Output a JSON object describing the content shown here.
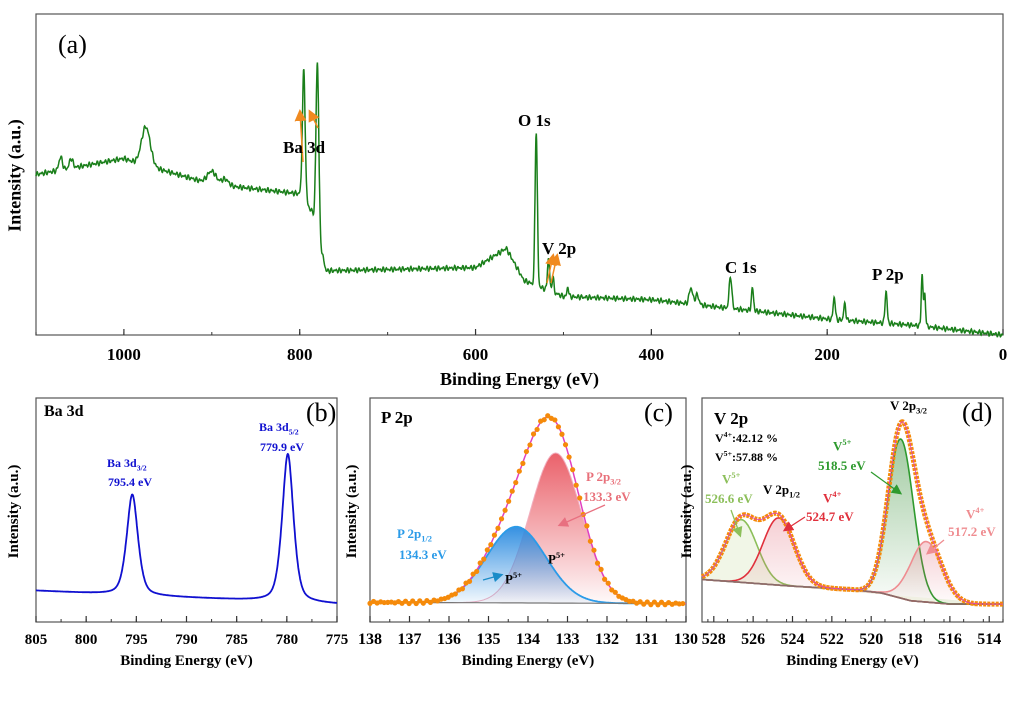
{
  "colors": {
    "survey": "#1a7f1a",
    "ba": "#1010d0",
    "envelope_dots": "#f58a0a",
    "envelope_line": "#e040c0",
    "p_half": "#2b9be8",
    "p_three_half": "#e8505a",
    "v5_526": "#8cbf5a",
    "v4_524": "#e0303c",
    "v5_518": "#2e9a2e",
    "v4_517": "#ef8c90",
    "background_line": "#8a6a6a",
    "arrow": "#f08a20"
  },
  "chart_data": [
    {
      "panel": "(a)",
      "type": "line",
      "xlabel": "Binding Energy (eV)",
      "ylabel": "Intensity (a.u.)",
      "xlim": [
        1100,
        0
      ],
      "ylim": [
        0,
        100
      ],
      "xticks": [
        1000,
        800,
        600,
        400,
        200,
        0
      ],
      "grid": false,
      "baseline": [
        [
          1100,
          50
        ],
        [
          1000,
          55
        ],
        [
          990,
          54
        ],
        [
          900,
          47
        ],
        [
          800,
          44
        ],
        [
          785,
          38
        ],
        [
          770,
          20
        ],
        [
          600,
          21
        ],
        [
          565,
          27
        ],
        [
          545,
          17
        ],
        [
          500,
          12
        ],
        [
          400,
          11
        ],
        [
          300,
          8
        ],
        [
          200,
          5
        ],
        [
          100,
          3
        ],
        [
          0,
          0
        ]
      ],
      "peaks": [
        [
          1072,
          4,
          2
        ],
        [
          1060,
          3,
          2
        ],
        [
          975,
          12,
          5
        ],
        [
          900,
          4,
          5
        ],
        [
          885,
          2,
          4
        ],
        [
          795.4,
          40,
          1.6
        ],
        [
          779.9,
          53,
          1.6
        ],
        [
          531,
          48,
          1.3
        ],
        [
          517,
          10,
          1.2
        ],
        [
          512,
          5,
          1
        ],
        [
          495,
          3,
          1
        ],
        [
          355,
          5,
          2
        ],
        [
          348,
          3,
          2
        ],
        [
          310,
          10,
          1.5
        ],
        [
          285,
          7,
          1.2
        ],
        [
          192,
          7,
          1.2
        ],
        [
          180,
          5,
          1.2
        ],
        [
          133,
          10,
          1.2
        ],
        [
          92,
          16,
          1
        ],
        [
          89,
          10,
          1
        ]
      ],
      "annotations": [
        "Ba 3d",
        "O 1s",
        "V 2p",
        "C 1s",
        "P 2p"
      ]
    },
    {
      "panel": "(b)",
      "type": "line",
      "title": "Ba 3d",
      "xlabel": "Binding Energy (eV)",
      "ylabel": "Intensity (a.u.)",
      "xlim": [
        805,
        775
      ],
      "ylim": [
        0,
        100
      ],
      "xticks": [
        805,
        800,
        795,
        790,
        785,
        780,
        775
      ],
      "baseline": [
        [
          805,
          14
        ],
        [
          796,
          12
        ],
        [
          780,
          9
        ],
        [
          775,
          8
        ]
      ],
      "peaks": [
        {
          "label": "Ba 3d",
          "sub": "3/2",
          "center": 795.4,
          "height": 45,
          "width": 0.6
        },
        {
          "label": "Ba 3d",
          "sub": "5/2",
          "center": 779.9,
          "height": 66,
          "width": 0.6
        }
      ]
    },
    {
      "panel": "(c)",
      "type": "line",
      "title": "P 2p",
      "xlabel": "Binding Energy (eV)",
      "ylabel": "Intensity (a.u.)",
      "xlim": [
        138,
        130
      ],
      "ylim": [
        0,
        100
      ],
      "xticks": [
        138,
        137,
        136,
        135,
        134,
        133,
        132,
        131,
        130
      ],
      "baseline": [
        [
          138,
          8.8
        ],
        [
          130,
          8.2
        ]
      ],
      "components": [
        {
          "label": "P 2p",
          "sub": "1/2",
          "energy": "134.3 eV",
          "state": "P",
          "state_sup": "5+",
          "center": 134.3,
          "height": 34,
          "sigma": 0.75
        },
        {
          "label": "P 2p",
          "sub": "3/2",
          "energy": "133.3 eV",
          "state": "P",
          "state_sup": "5+",
          "center": 133.3,
          "height": 67,
          "sigma": 0.65
        }
      ]
    },
    {
      "panel": "(d)",
      "type": "line",
      "title": "V 2p",
      "xlabel": "Binding Energy (eV)",
      "ylabel": "Intensity (a.u.)",
      "xlim": [
        528.6,
        513.3
      ],
      "ylim": [
        0,
        100
      ],
      "xticks": [
        528,
        526,
        524,
        522,
        520,
        518,
        516,
        514
      ],
      "baseline": [
        [
          528.6,
          19
        ],
        [
          524,
          16
        ],
        [
          521,
          14.5
        ],
        [
          519.5,
          13
        ],
        [
          518,
          9.5
        ],
        [
          516,
          8
        ],
        [
          513.3,
          8
        ]
      ],
      "ratios": [
        {
          "ion": "V",
          "sup": "4+",
          "value": ":42.12 %"
        },
        {
          "ion": "V",
          "sup": "5+",
          "value": ":57.88 %"
        }
      ],
      "groups": [
        {
          "label": "V 2p",
          "sub": "1/2"
        },
        {
          "label": "V 2p",
          "sub": "3/2"
        }
      ],
      "components": [
        {
          "state": "V",
          "state_sup": "5+",
          "energy": "526.6 eV",
          "center": 526.6,
          "height": 28,
          "sigma": 0.8
        },
        {
          "state": "V",
          "state_sup": "4+",
          "energy": "524.7 eV",
          "center": 524.7,
          "height": 30,
          "sigma": 0.8
        },
        {
          "state": "V",
          "state_sup": "5+",
          "energy": "518.5 eV",
          "center": 518.5,
          "height": 71,
          "sigma": 0.65
        },
        {
          "state": "V",
          "state_sup": "4+",
          "energy": "517.2 eV",
          "center": 517.2,
          "height": 27,
          "sigma": 0.8
        }
      ]
    }
  ]
}
